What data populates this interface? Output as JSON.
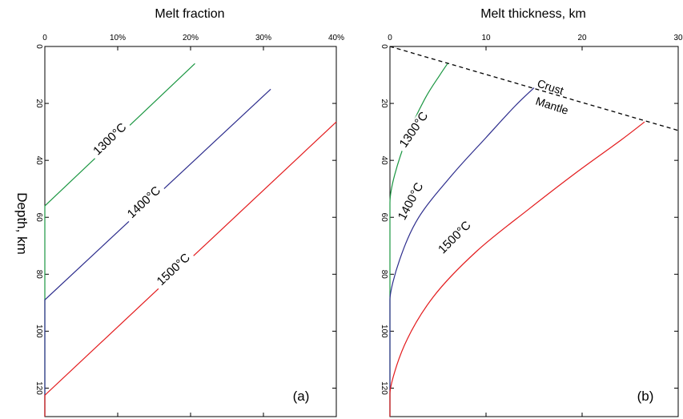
{
  "y_axis_label": "Depth, km",
  "chart_data": [
    {
      "panel": "(a)",
      "type": "line",
      "title": "Melt fraction",
      "xlabel": "Melt fraction",
      "ylabel": "Depth, km",
      "x_ticks": [
        "0",
        "10%",
        "20%",
        "30%",
        "40%"
      ],
      "y_ticks": [
        "0",
        "20",
        "40",
        "60",
        "80",
        "100",
        "120"
      ],
      "xlim": [
        0,
        0.4
      ],
      "ylim": [
        0,
        130
      ],
      "y_inverted": true,
      "x_axis_position": "top",
      "series": [
        {
          "name": "1300°C",
          "color": "#1a9641",
          "x": [
            0,
            0,
            0.206
          ],
          "y": [
            130,
            56,
            6
          ]
        },
        {
          "name": "1400°C",
          "color": "#2c2c8c",
          "x": [
            0,
            0,
            0.31
          ],
          "y": [
            130,
            89,
            15
          ]
        },
        {
          "name": "1500°C",
          "color": "#e31a1c",
          "x": [
            0,
            0,
            0.4
          ],
          "y": [
            130,
            122.5,
            26.5
          ]
        }
      ]
    },
    {
      "panel": "(b)",
      "type": "line",
      "title": "Melt thickness, km",
      "xlabel": "Melt thickness, km",
      "ylabel": "Depth, km",
      "x_ticks": [
        "0",
        "10",
        "20",
        "30"
      ],
      "y_ticks": [
        "0",
        "20",
        "40",
        "60",
        "80",
        "100",
        "120"
      ],
      "xlim": [
        0,
        30
      ],
      "ylim": [
        0,
        130
      ],
      "y_inverted": true,
      "x_axis_position": "top",
      "annotations": [
        "Crust",
        "Mantle"
      ],
      "boundary": {
        "x": [
          0,
          30
        ],
        "y": [
          0,
          29.5
        ],
        "style": "dashed"
      },
      "series": [
        {
          "name": "1300°C",
          "color": "#1a9641",
          "x": [
            0,
            0,
            0.5,
            2,
            3.7,
            5.2,
            6.0
          ],
          "y": [
            130,
            55,
            45,
            30,
            18,
            10,
            6
          ]
        },
        {
          "name": "1400°C",
          "color": "#2c2c8c",
          "x": [
            0,
            0,
            1,
            3,
            6.5,
            10,
            13,
            15.0
          ],
          "y": [
            130,
            89,
            75,
            60,
            45,
            32,
            21,
            14.5
          ]
        },
        {
          "name": "1500°C",
          "color": "#e31a1c",
          "x": [
            0,
            0,
            1.5,
            4.5,
            9,
            14.5,
            19.5,
            24,
            26.5
          ],
          "y": [
            130,
            122,
            105,
            88,
            72,
            57,
            44,
            33,
            26.5
          ]
        }
      ]
    }
  ]
}
